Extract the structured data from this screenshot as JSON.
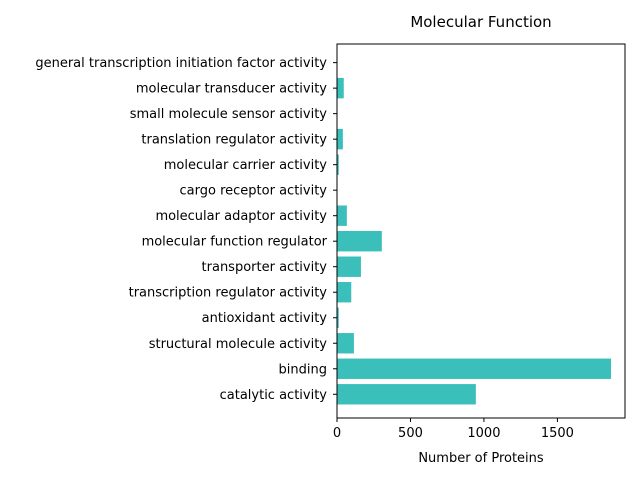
{
  "chart_data": {
    "type": "bar",
    "orientation": "horizontal",
    "title": "Molecular Function",
    "xlabel": "Number of Proteins",
    "ylabel": "",
    "xlim": [
      0,
      1960
    ],
    "xticks": [
      0,
      500,
      1000,
      1500
    ],
    "grid": false,
    "bar_color": "#3bbfba",
    "categories": [
      "catalytic activity",
      "binding",
      "structural molecule activity",
      "antioxidant activity",
      "transcription regulator activity",
      "transporter activity",
      "molecular function regulator",
      "molecular adaptor activity",
      "cargo receptor activity",
      "molecular carrier activity",
      "translation regulator activity",
      "small molecule sensor activity",
      "molecular transducer activity",
      "general transcription initiation factor activity"
    ],
    "values": [
      945,
      1865,
      115,
      12,
      97,
      163,
      305,
      67,
      3,
      12,
      40,
      2,
      46,
      2
    ]
  }
}
